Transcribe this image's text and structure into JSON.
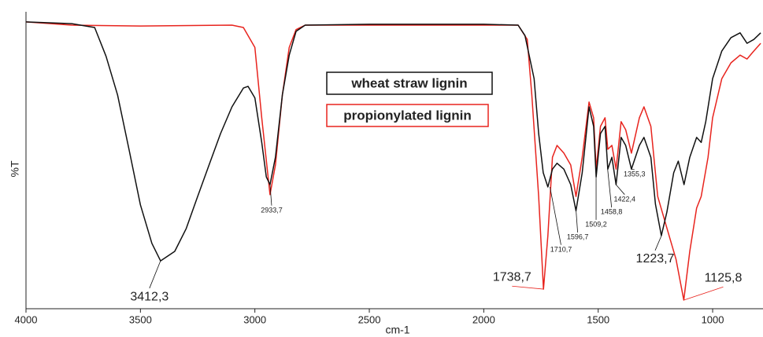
{
  "chart_data": {
    "type": "line",
    "x_label": "cm-1",
    "y_label": "%T",
    "xlim": [
      4000,
      780
    ],
    "ylim": [
      0,
      100
    ],
    "xticks": [
      4000,
      3500,
      3000,
      2500,
      2000,
      1500,
      1000
    ],
    "series": [
      {
        "name": "wheat straw lignin",
        "color": "#111111",
        "x": [
          4000,
          3800,
          3700,
          3650,
          3600,
          3550,
          3500,
          3450,
          3412,
          3350,
          3300,
          3250,
          3200,
          3150,
          3100,
          3050,
          3030,
          3000,
          2970,
          2950,
          2934,
          2910,
          2880,
          2850,
          2820,
          2780,
          2500,
          2000,
          1850,
          1820,
          1780,
          1760,
          1740,
          1720,
          1700,
          1680,
          1650,
          1620,
          1597,
          1570,
          1540,
          1520,
          1509,
          1490,
          1470,
          1458,
          1440,
          1422,
          1400,
          1380,
          1355,
          1320,
          1300,
          1270,
          1250,
          1224,
          1200,
          1170,
          1150,
          1125,
          1100,
          1070,
          1050,
          1030,
          1000,
          960,
          920,
          880,
          850,
          820,
          790
        ],
        "values": [
          96.6,
          96,
          94.7,
          85,
          72,
          53.7,
          35,
          22,
          16.1,
          19.3,
          27,
          37.8,
          48.4,
          59,
          68,
          74.3,
          74.9,
          71,
          56,
          44.4,
          41.8,
          51,
          72,
          85.4,
          93.4,
          95.5,
          95.8,
          95.8,
          95.5,
          92,
          77.5,
          59,
          45.8,
          41,
          47,
          49,
          47,
          41.8,
          33,
          45.8,
          68,
          61.4,
          44.4,
          59,
          61.4,
          47,
          51,
          41.8,
          57.7,
          55,
          47,
          55,
          57.7,
          51,
          35.2,
          24.6,
          32.5,
          45.8,
          49.7,
          41.8,
          51,
          57.7,
          56,
          63,
          77.5,
          86.8,
          91.3,
          92.9,
          89.4,
          90.7,
          92.9
        ]
      },
      {
        "name": "propionylated lignin",
        "color": "#e8241e",
        "x": [
          4000,
          3800,
          3500,
          3100,
          3050,
          3000,
          2970,
          2934,
          2910,
          2880,
          2850,
          2820,
          2780,
          1850,
          1810,
          1790,
          1760,
          1739,
          1720,
          1700,
          1680,
          1650,
          1620,
          1597,
          1570,
          1540,
          1520,
          1509,
          1490,
          1470,
          1458,
          1440,
          1422,
          1400,
          1380,
          1355,
          1320,
          1300,
          1270,
          1240,
          1200,
          1160,
          1126,
          1100,
          1070,
          1050,
          1020,
          1000,
          960,
          920,
          880,
          850,
          820,
          790
        ],
        "values": [
          96.6,
          95.5,
          95.2,
          95.5,
          94.7,
          88,
          64.3,
          38.4,
          48.4,
          72,
          88,
          94,
          95.5,
          95.5,
          90.7,
          72,
          37.8,
          6.6,
          24.6,
          51,
          55,
          52.4,
          48.4,
          37.8,
          51,
          69.6,
          64.3,
          47,
          61.4,
          64.3,
          53.7,
          55,
          47,
          63,
          60.3,
          52.4,
          64.3,
          68,
          61.4,
          37.8,
          27.2,
          16.7,
          2.9,
          19.3,
          33.9,
          37.8,
          51,
          64.3,
          77.5,
          82.8,
          85.4,
          84.1,
          86.8,
          89.4
        ]
      }
    ],
    "annotations": [
      {
        "text": "3412,3",
        "x": 3412.3,
        "y": 16.1,
        "color": "#111111"
      },
      {
        "text": "2933,7",
        "x": 2933.7,
        "y": 41.8,
        "color": "#111111"
      },
      {
        "text": "1710,7",
        "x": 1710.7,
        "y": 41,
        "color": "#111111"
      },
      {
        "text": "1596,7",
        "x": 1596.7,
        "y": 33,
        "color": "#111111"
      },
      {
        "text": "1509,2",
        "x": 1509.2,
        "y": 44.4,
        "color": "#111111"
      },
      {
        "text": "1458,8",
        "x": 1458.8,
        "y": 47,
        "color": "#111111"
      },
      {
        "text": "1422,4",
        "x": 1422.4,
        "y": 41.8,
        "color": "#111111"
      },
      {
        "text": "1355,3",
        "x": 1355.3,
        "y": 47,
        "color": "#111111"
      },
      {
        "text": "1738,7",
        "x": 1738.7,
        "y": 6.6,
        "color": "#e8241e"
      },
      {
        "text": "1223,7",
        "x": 1223.7,
        "y": 24.6,
        "color": "#111111"
      },
      {
        "text": "1125,8",
        "x": 1125.8,
        "y": 2.9,
        "color": "#e8241e"
      }
    ]
  }
}
